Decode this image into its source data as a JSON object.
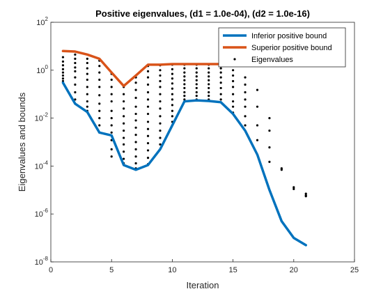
{
  "chart_data": {
    "type": "line",
    "title": "Positive eigenvalues, (d1 = 1.0e-04), (d2 = 1.0e-16)",
    "xlabel": "Iteration",
    "ylabel": "Eigenvalues and bounds",
    "xlim": [
      0,
      25
    ],
    "ylim": [
      1e-08,
      100
    ],
    "yscale": "log",
    "grid": false,
    "legend_position": "top-right",
    "x_ticks": [
      {
        "value": 0,
        "label": "0"
      },
      {
        "value": 5,
        "label": "5"
      },
      {
        "value": 10,
        "label": "10"
      },
      {
        "value": 15,
        "label": "15"
      },
      {
        "value": 20,
        "label": "20"
      },
      {
        "value": 25,
        "label": "25"
      }
    ],
    "y_ticks": [
      {
        "value": 1e-08,
        "base": "10",
        "exp": "-8"
      },
      {
        "value": 1e-06,
        "base": "10",
        "exp": "-6"
      },
      {
        "value": 0.0001,
        "base": "10",
        "exp": "-4"
      },
      {
        "value": 0.01,
        "base": "10",
        "exp": "-2"
      },
      {
        "value": 1,
        "base": "10",
        "exp": "0"
      },
      {
        "value": 100,
        "base": "10",
        "exp": "2"
      }
    ],
    "series": [
      {
        "name": "Inferior positive bound",
        "kind": "line",
        "color": "#0072BD",
        "x": [
          1,
          2,
          3,
          4,
          5,
          6,
          7,
          8,
          9,
          10,
          11,
          12,
          13,
          14,
          15,
          16,
          17,
          18,
          19,
          20,
          21
        ],
        "y": [
          0.3,
          0.04,
          0.018,
          0.0025,
          0.0019,
          0.00011,
          7e-05,
          0.00011,
          0.0005,
          0.005,
          0.05,
          0.055,
          0.052,
          0.046,
          0.015,
          0.003,
          0.0003,
          1e-05,
          5e-07,
          1e-07,
          5e-08
        ]
      },
      {
        "name": "Superior positive bound",
        "kind": "line",
        "color": "#D95319",
        "x": [
          1,
          2,
          3,
          4,
          5,
          6,
          7,
          8,
          9,
          10,
          11,
          12,
          13,
          14
        ],
        "y": [
          6.3,
          6.0,
          4.5,
          3.0,
          0.8,
          0.22,
          0.6,
          1.7,
          1.7,
          1.8,
          1.8,
          1.8,
          1.8,
          1.8
        ]
      },
      {
        "name": "Eigenvalues",
        "kind": "scatter",
        "color": "#000000",
        "points": [
          [
            1,
            3.5
          ],
          [
            1,
            2.3
          ],
          [
            1,
            1.6
          ],
          [
            1,
            1.1
          ],
          [
            1,
            0.8
          ],
          [
            1,
            0.6
          ],
          [
            1,
            0.45
          ],
          [
            1,
            0.35
          ],
          [
            2,
            4.5
          ],
          [
            2,
            3.0
          ],
          [
            2,
            2.0
          ],
          [
            2,
            1.3
          ],
          [
            2,
            0.9
          ],
          [
            2,
            0.5
          ],
          [
            2,
            0.25
          ],
          [
            2,
            0.12
          ],
          [
            2,
            0.06
          ],
          [
            3,
            3.0
          ],
          [
            3,
            2.0
          ],
          [
            3,
            1.2
          ],
          [
            3,
            0.7
          ],
          [
            3,
            0.4
          ],
          [
            3,
            0.2
          ],
          [
            3,
            0.1
          ],
          [
            3,
            0.05
          ],
          [
            3,
            0.03
          ],
          [
            3,
            0.02
          ],
          [
            4,
            2.5
          ],
          [
            4,
            1.5
          ],
          [
            4,
            0.8
          ],
          [
            4,
            0.4
          ],
          [
            4,
            0.2
          ],
          [
            4,
            0.09
          ],
          [
            4,
            0.04
          ],
          [
            4,
            0.02
          ],
          [
            4,
            0.01
          ],
          [
            4,
            0.005
          ],
          [
            4,
            0.0025
          ],
          [
            5,
            0.7
          ],
          [
            5,
            0.4
          ],
          [
            5,
            0.2
          ],
          [
            5,
            0.1
          ],
          [
            5,
            0.05
          ],
          [
            5,
            0.02
          ],
          [
            5,
            0.01
          ],
          [
            5,
            0.005
          ],
          [
            5,
            0.0025
          ],
          [
            5,
            0.0012
          ],
          [
            5,
            0.0005
          ],
          [
            5,
            0.00025
          ],
          [
            6,
            0.2
          ],
          [
            6,
            0.1
          ],
          [
            6,
            0.05
          ],
          [
            6,
            0.025
          ],
          [
            6,
            0.012
          ],
          [
            6,
            0.006
          ],
          [
            6,
            0.003
          ],
          [
            6,
            0.0015
          ],
          [
            6,
            0.0008
          ],
          [
            6,
            0.0004
          ],
          [
            6,
            0.0002
          ],
          [
            6,
            0.00013
          ],
          [
            7,
            0.5
          ],
          [
            7,
            0.3
          ],
          [
            7,
            0.15
          ],
          [
            7,
            0.07
          ],
          [
            7,
            0.03
          ],
          [
            7,
            0.015
          ],
          [
            7,
            0.008
          ],
          [
            7,
            0.004
          ],
          [
            7,
            0.002
          ],
          [
            7,
            0.001
          ],
          [
            7,
            0.0005
          ],
          [
            7,
            0.00025
          ],
          [
            7,
            0.00013
          ],
          [
            7,
            8e-05
          ],
          [
            8,
            1.5
          ],
          [
            8,
            0.9
          ],
          [
            8,
            0.5
          ],
          [
            8,
            0.25
          ],
          [
            8,
            0.12
          ],
          [
            8,
            0.06
          ],
          [
            8,
            0.03
          ],
          [
            8,
            0.015
          ],
          [
            8,
            0.007
          ],
          [
            8,
            0.0035
          ],
          [
            8,
            0.0018
          ],
          [
            8,
            0.0009
          ],
          [
            8,
            0.00045
          ],
          [
            8,
            0.00022
          ],
          [
            8,
            0.00012
          ],
          [
            9,
            1.6
          ],
          [
            9,
            1.0
          ],
          [
            9,
            0.6
          ],
          [
            9,
            0.35
          ],
          [
            9,
            0.2
          ],
          [
            9,
            0.1
          ],
          [
            9,
            0.05
          ],
          [
            9,
            0.025
          ],
          [
            9,
            0.012
          ],
          [
            9,
            0.006
          ],
          [
            9,
            0.003
          ],
          [
            9,
            0.0015
          ],
          [
            9,
            0.0008
          ],
          [
            10,
            1.7
          ],
          [
            10,
            1.1
          ],
          [
            10,
            0.7
          ],
          [
            10,
            0.45
          ],
          [
            10,
            0.28
          ],
          [
            10,
            0.17
          ],
          [
            10,
            0.1
          ],
          [
            10,
            0.06
          ],
          [
            10,
            0.035
          ],
          [
            10,
            0.02
          ],
          [
            10,
            0.012
          ],
          [
            10,
            0.007
          ],
          [
            11,
            1.7
          ],
          [
            11,
            1.2
          ],
          [
            11,
            0.8
          ],
          [
            11,
            0.55
          ],
          [
            11,
            0.38
          ],
          [
            11,
            0.26
          ],
          [
            11,
            0.18
          ],
          [
            11,
            0.12
          ],
          [
            11,
            0.085
          ],
          [
            11,
            0.06
          ],
          [
            12,
            1.7
          ],
          [
            12,
            1.2
          ],
          [
            12,
            0.8
          ],
          [
            12,
            0.55
          ],
          [
            12,
            0.38
          ],
          [
            12,
            0.26
          ],
          [
            12,
            0.18
          ],
          [
            12,
            0.12
          ],
          [
            12,
            0.085
          ],
          [
            12,
            0.06
          ],
          [
            13,
            1.7
          ],
          [
            13,
            1.2
          ],
          [
            13,
            0.8
          ],
          [
            13,
            0.55
          ],
          [
            13,
            0.38
          ],
          [
            13,
            0.26
          ],
          [
            13,
            0.18
          ],
          [
            13,
            0.12
          ],
          [
            13,
            0.085
          ],
          [
            13,
            0.06
          ],
          [
            14,
            1.7
          ],
          [
            14,
            1.2
          ],
          [
            14,
            0.8
          ],
          [
            14,
            0.5
          ],
          [
            14,
            0.3
          ],
          [
            14,
            0.18
          ],
          [
            14,
            0.1
          ],
          [
            14,
            0.06
          ],
          [
            15,
            1.6
          ],
          [
            15,
            1.0
          ],
          [
            15,
            0.6
          ],
          [
            15,
            0.35
          ],
          [
            15,
            0.2
          ],
          [
            15,
            0.1
          ],
          [
            15,
            0.05
          ],
          [
            15,
            0.03
          ],
          [
            15,
            0.017
          ],
          [
            16,
            0.5
          ],
          [
            16,
            0.25
          ],
          [
            16,
            0.12
          ],
          [
            16,
            0.06
          ],
          [
            16,
            0.03
          ],
          [
            16,
            0.012
          ],
          [
            16,
            0.005
          ],
          [
            17,
            0.15
          ],
          [
            17,
            0.03
          ],
          [
            17,
            0.005
          ],
          [
            17,
            0.0012
          ],
          [
            18,
            0.01
          ],
          [
            18,
            0.003
          ],
          [
            18,
            0.0006
          ],
          [
            18,
            0.00015
          ],
          [
            19,
            8e-05
          ],
          [
            19,
            7e-05
          ],
          [
            20,
            1.3e-05
          ],
          [
            20,
            1.1e-05
          ],
          [
            21,
            7e-06
          ],
          [
            21,
            6e-06
          ],
          [
            21,
            5.5e-06
          ]
        ]
      }
    ]
  }
}
